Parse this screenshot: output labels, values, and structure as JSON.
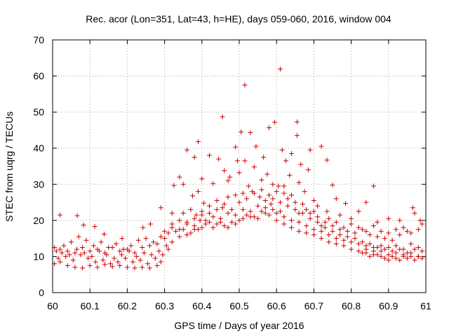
{
  "chart_data": {
    "type": "scatter",
    "title": "Rec. acor (Lon=351, Lat=43, h=HE), days 059-060, 2016, window 004",
    "xlabel": "GPS time / Days of year 2016",
    "ylabel": "STEC from uqrg / TECUs",
    "xlim": [
      60,
      61
    ],
    "ylim": [
      0,
      70
    ],
    "xticks": [
      60,
      60.1,
      60.2,
      60.3,
      60.4,
      60.5,
      60.6,
      60.7,
      60.8,
      60.9,
      61
    ],
    "xtick_labels": [
      "60",
      "60.1",
      "60.2",
      "60.3",
      "60.4",
      "60.5",
      "60.6",
      "60.7",
      "60.8",
      "60.9",
      "61"
    ],
    "yticks": [
      0,
      10,
      20,
      30,
      40,
      50,
      60,
      70
    ],
    "ytick_labels": [
      "0",
      "10",
      "20",
      "30",
      "40",
      "50",
      "60",
      "70"
    ],
    "grid": true,
    "marker": "plus",
    "color": "#cc0000",
    "points": [
      [
        60.02,
        21.5
      ],
      [
        60.066,
        21.3
      ],
      [
        60.083,
        18.7
      ],
      [
        60.113,
        18.3
      ],
      [
        60.138,
        16.2
      ],
      [
        60.186,
        15.0
      ],
      [
        60.242,
        18.0
      ],
      [
        60.262,
        19.0
      ],
      [
        60.29,
        23.5
      ],
      [
        60.32,
        22.0
      ],
      [
        60.34,
        32.0
      ],
      [
        60.36,
        39.5
      ],
      [
        60.38,
        37.5
      ],
      [
        60.39,
        41.8
      ],
      [
        60.4,
        31.5
      ],
      [
        60.42,
        38.0
      ],
      [
        60.445,
        37.0
      ],
      [
        60.455,
        48.7
      ],
      [
        60.47,
        31.0
      ],
      [
        60.49,
        40.3
      ],
      [
        60.495,
        36.5
      ],
      [
        60.505,
        44.5
      ],
      [
        60.515,
        57.5
      ],
      [
        60.515,
        36.5
      ],
      [
        60.53,
        44.3
      ],
      [
        60.545,
        40.5
      ],
      [
        60.565,
        37.5
      ],
      [
        60.58,
        45.7
      ],
      [
        60.595,
        47.2
      ],
      [
        60.61,
        61.9
      ],
      [
        60.615,
        39.5
      ],
      [
        60.625,
        36.5
      ],
      [
        60.64,
        38.5
      ],
      [
        60.655,
        47.3
      ],
      [
        60.655,
        43.5
      ],
      [
        60.665,
        35.5
      ],
      [
        60.685,
        34.0
      ],
      [
        60.69,
        39.5
      ],
      [
        60.72,
        40.5
      ],
      [
        60.735,
        36.7
      ],
      [
        60.75,
        29.8
      ],
      [
        60.76,
        26.0
      ],
      [
        60.785,
        24.7
      ],
      [
        60.84,
        25.0
      ],
      [
        60.86,
        29.5
      ],
      [
        60.9,
        20.5
      ],
      [
        60.965,
        23.5
      ],
      [
        60.99,
        19.0
      ],
      [
        60.325,
        29.7
      ],
      [
        60.35,
        30.0
      ],
      [
        60.375,
        26.8
      ],
      [
        60.39,
        28.0
      ],
      [
        60.405,
        24.8
      ],
      [
        60.43,
        30.2
      ],
      [
        60.46,
        33.8
      ],
      [
        60.475,
        32.0
      ],
      [
        60.5,
        33.2
      ],
      [
        60.525,
        29.5
      ],
      [
        60.54,
        34.8
      ],
      [
        60.56,
        31.2
      ],
      [
        60.575,
        32.8
      ],
      [
        60.59,
        30.0
      ],
      [
        60.605,
        29.5
      ],
      [
        60.62,
        27.5
      ],
      [
        60.635,
        32.5
      ],
      [
        60.66,
        30.5
      ],
      [
        60.675,
        28.0
      ],
      [
        60.7,
        25.5
      ],
      [
        60.71,
        24.0
      ],
      [
        60.735,
        22.5
      ],
      [
        60.77,
        21.5
      ],
      [
        60.8,
        20.5
      ],
      [
        60.82,
        22.5
      ],
      [
        60.87,
        19.5
      ],
      [
        60.93,
        20.0
      ],
      [
        60.35,
        22.0
      ],
      [
        60.37,
        23.0
      ],
      [
        60.385,
        21.5
      ],
      [
        60.4,
        22.5
      ],
      [
        60.42,
        24.0
      ],
      [
        60.44,
        25.5
      ],
      [
        60.455,
        23.5
      ],
      [
        60.47,
        26.5
      ],
      [
        60.49,
        27.0
      ],
      [
        60.51,
        27.5
      ],
      [
        60.535,
        28.0
      ],
      [
        60.555,
        26.5
      ],
      [
        60.57,
        25.5
      ],
      [
        60.59,
        26.0
      ],
      [
        60.61,
        25.0
      ],
      [
        60.63,
        26.0
      ],
      [
        60.65,
        25.0
      ],
      [
        60.67,
        24.5
      ],
      [
        60.69,
        22.0
      ],
      [
        60.71,
        21.0
      ],
      [
        60.73,
        19.5
      ],
      [
        60.75,
        18.5
      ],
      [
        60.77,
        17.5
      ],
      [
        60.79,
        17.0
      ],
      [
        60.81,
        16.5
      ],
      [
        60.83,
        17.5
      ],
      [
        60.85,
        16.0
      ],
      [
        60.87,
        15.5
      ],
      [
        60.89,
        15.0
      ],
      [
        60.91,
        14.5
      ],
      [
        60.93,
        16.0
      ],
      [
        60.95,
        17.0
      ],
      [
        60.97,
        22.0
      ],
      [
        60.985,
        20.0
      ],
      [
        60.3,
        17.0
      ],
      [
        60.32,
        18.0
      ],
      [
        60.34,
        17.5
      ],
      [
        60.36,
        19.0
      ],
      [
        60.38,
        18.5
      ],
      [
        60.395,
        20.0
      ],
      [
        60.41,
        19.0
      ],
      [
        60.43,
        21.0
      ],
      [
        60.45,
        20.5
      ],
      [
        60.47,
        22.0
      ],
      [
        60.49,
        21.5
      ],
      [
        60.51,
        23.0
      ],
      [
        60.53,
        22.5
      ],
      [
        60.55,
        24.0
      ],
      [
        60.57,
        23.5
      ],
      [
        60.585,
        24.5
      ],
      [
        60.6,
        22.0
      ],
      [
        60.62,
        21.0
      ],
      [
        60.64,
        20.0
      ],
      [
        60.66,
        19.5
      ],
      [
        60.68,
        18.5
      ],
      [
        60.7,
        17.5
      ],
      [
        60.72,
        17.0
      ],
      [
        60.74,
        16.0
      ],
      [
        60.76,
        15.0
      ],
      [
        60.78,
        14.5
      ],
      [
        60.8,
        14.0
      ],
      [
        60.82,
        13.5
      ],
      [
        60.84,
        13.0
      ],
      [
        60.86,
        12.5
      ],
      [
        60.88,
        13.0
      ],
      [
        60.9,
        12.5
      ],
      [
        60.92,
        13.0
      ],
      [
        60.94,
        12.0
      ],
      [
        60.96,
        13.5
      ],
      [
        60.98,
        12.5
      ],
      [
        60.005,
        12.5
      ],
      [
        60.02,
        12.0
      ],
      [
        60.04,
        11.5
      ],
      [
        60.06,
        11.0
      ],
      [
        60.08,
        12.5
      ],
      [
        60.1,
        11.5
      ],
      [
        60.12,
        12.0
      ],
      [
        60.14,
        11.0
      ],
      [
        60.16,
        12.5
      ],
      [
        60.18,
        11.5
      ],
      [
        60.2,
        12.0
      ],
      [
        60.22,
        11.0
      ],
      [
        60.24,
        12.5
      ],
      [
        60.26,
        13.0
      ],
      [
        60.28,
        13.5
      ],
      [
        60.3,
        15.0
      ],
      [
        60.32,
        14.0
      ],
      [
        60.34,
        15.5
      ],
      [
        60.36,
        16.0
      ],
      [
        60.38,
        17.5
      ],
      [
        60.4,
        18.0
      ],
      [
        60.42,
        19.5
      ],
      [
        60.44,
        19.0
      ],
      [
        60.46,
        18.5
      ],
      [
        60.48,
        19.5
      ],
      [
        60.5,
        20.0
      ],
      [
        60.52,
        21.5
      ],
      [
        60.54,
        21.0
      ],
      [
        60.56,
        22.5
      ],
      [
        60.58,
        21.5
      ],
      [
        60.6,
        20.0
      ],
      [
        60.62,
        19.0
      ],
      [
        60.64,
        18.0
      ],
      [
        60.66,
        17.0
      ],
      [
        60.68,
        16.5
      ],
      [
        60.7,
        16.0
      ],
      [
        60.72,
        15.0
      ],
      [
        60.74,
        14.0
      ],
      [
        60.76,
        13.5
      ],
      [
        60.78,
        13.0
      ],
      [
        60.8,
        12.0
      ],
      [
        60.82,
        11.5
      ],
      [
        60.84,
        11.0
      ],
      [
        60.86,
        10.5
      ],
      [
        60.88,
        11.5
      ],
      [
        60.9,
        10.5
      ],
      [
        60.92,
        11.0
      ],
      [
        60.94,
        10.0
      ],
      [
        60.96,
        11.0
      ],
      [
        60.98,
        10.0
      ],
      [
        60.01,
        11.5
      ],
      [
        60.03,
        13.0
      ],
      [
        60.05,
        14.0
      ],
      [
        60.07,
        15.5
      ],
      [
        60.09,
        14.5
      ],
      [
        60.11,
        13.0
      ],
      [
        60.13,
        14.0
      ],
      [
        60.15,
        12.5
      ],
      [
        60.17,
        13.5
      ],
      [
        60.19,
        12.0
      ],
      [
        60.21,
        13.0
      ],
      [
        60.23,
        14.5
      ],
      [
        60.25,
        15.0
      ],
      [
        60.27,
        14.0
      ],
      [
        60.29,
        15.5
      ],
      [
        60.31,
        16.5
      ],
      [
        60.33,
        17.0
      ],
      [
        60.35,
        17.5
      ],
      [
        60.37,
        16.5
      ],
      [
        60.39,
        17.5
      ],
      [
        60.41,
        20.0
      ],
      [
        60.43,
        18.0
      ],
      [
        60.45,
        19.5
      ],
      [
        60.47,
        18.0
      ],
      [
        60.49,
        19.0
      ],
      [
        60.51,
        20.5
      ],
      [
        60.53,
        21.0
      ],
      [
        60.55,
        20.5
      ],
      [
        60.57,
        22.0
      ],
      [
        60.59,
        23.0
      ],
      [
        60.61,
        22.5
      ],
      [
        60.63,
        24.0
      ],
      [
        60.65,
        23.0
      ],
      [
        60.67,
        22.0
      ],
      [
        60.69,
        20.5
      ],
      [
        60.71,
        19.5
      ],
      [
        60.73,
        18.0
      ],
      [
        60.75,
        17.0
      ],
      [
        60.77,
        16.0
      ],
      [
        60.79,
        15.5
      ],
      [
        60.81,
        15.0
      ],
      [
        60.83,
        14.0
      ],
      [
        60.85,
        13.5
      ],
      [
        60.87,
        12.5
      ],
      [
        60.89,
        12.0
      ],
      [
        60.91,
        11.5
      ],
      [
        60.93,
        12.0
      ],
      [
        60.95,
        11.0
      ],
      [
        60.97,
        12.0
      ],
      [
        60.99,
        11.5
      ],
      [
        60.005,
        8.0
      ],
      [
        60.02,
        8.5
      ],
      [
        60.04,
        7.5
      ],
      [
        60.06,
        7.0
      ],
      [
        60.08,
        6.8
      ],
      [
        60.1,
        7.5
      ],
      [
        60.12,
        7.0
      ],
      [
        60.14,
        7.8
      ],
      [
        60.16,
        7.2
      ],
      [
        60.18,
        7.5
      ],
      [
        60.2,
        7.0
      ],
      [
        60.22,
        6.8
      ],
      [
        60.24,
        7.0
      ],
      [
        60.26,
        6.8
      ],
      [
        60.28,
        7.5
      ],
      [
        60.29,
        8.5
      ],
      [
        60.015,
        9.5
      ],
      [
        60.035,
        10.0
      ],
      [
        60.055,
        9.0
      ],
      [
        60.075,
        10.5
      ],
      [
        60.095,
        9.5
      ],
      [
        60.115,
        8.5
      ],
      [
        60.135,
        9.0
      ],
      [
        60.155,
        8.0
      ],
      [
        60.175,
        8.5
      ],
      [
        60.195,
        9.5
      ],
      [
        60.215,
        8.5
      ],
      [
        60.235,
        9.0
      ],
      [
        60.255,
        8.0
      ],
      [
        60.275,
        9.5
      ],
      [
        60.295,
        10.5
      ],
      [
        60.31,
        12.0
      ],
      [
        60.025,
        11.0
      ],
      [
        60.045,
        10.5
      ],
      [
        60.065,
        12.0
      ],
      [
        60.085,
        11.0
      ],
      [
        60.105,
        10.0
      ],
      [
        60.125,
        11.5
      ],
      [
        60.145,
        10.5
      ],
      [
        60.165,
        9.5
      ],
      [
        60.185,
        10.5
      ],
      [
        60.205,
        11.5
      ],
      [
        60.225,
        10.0
      ],
      [
        60.245,
        11.0
      ],
      [
        60.265,
        10.5
      ],
      [
        60.285,
        11.5
      ],
      [
        60.305,
        13.0
      ],
      [
        60.83,
        11.0
      ],
      [
        60.85,
        10.0
      ],
      [
        60.87,
        10.5
      ],
      [
        60.89,
        9.5
      ],
      [
        60.91,
        10.0
      ],
      [
        60.93,
        9.0
      ],
      [
        60.95,
        9.5
      ],
      [
        60.97,
        9.0
      ],
      [
        60.99,
        9.5
      ],
      [
        60.84,
        12.0
      ],
      [
        60.88,
        10.0
      ],
      [
        60.92,
        9.5
      ],
      [
        60.96,
        10.0
      ],
      [
        60.86,
        11.5
      ],
      [
        60.9,
        9.0
      ],
      [
        60.94,
        10.5
      ],
      [
        60.98,
        10.0
      ],
      [
        60.8,
        19.0
      ],
      [
        60.82,
        18.0
      ],
      [
        60.84,
        17.0
      ],
      [
        60.86,
        18.5
      ],
      [
        60.88,
        17.0
      ],
      [
        60.9,
        16.5
      ],
      [
        60.92,
        17.5
      ],
      [
        60.94,
        18.0
      ],
      [
        60.96,
        16.5
      ],
      [
        60.98,
        17.5
      ],
      [
        60.78,
        18.0
      ],
      [
        60.76,
        19.5
      ],
      [
        60.74,
        20.5
      ],
      [
        60.72,
        18.5
      ],
      [
        60.7,
        22.5
      ],
      [
        60.68,
        23.0
      ],
      [
        60.66,
        22.0
      ],
      [
        60.64,
        27.0
      ],
      [
        60.62,
        29.5
      ],
      [
        60.6,
        28.0
      ],
      [
        60.58,
        27.0
      ],
      [
        60.56,
        28.5
      ],
      [
        60.54,
        27.5
      ],
      [
        60.52,
        26.0
      ],
      [
        60.5,
        25.0
      ],
      [
        60.48,
        23.0
      ],
      [
        60.46,
        24.5
      ],
      [
        60.44,
        23.0
      ],
      [
        60.42,
        22.0
      ],
      [
        60.4,
        21.5
      ],
      [
        60.38,
        20.5
      ],
      [
        60.36,
        19.5
      ],
      [
        60.34,
        20.0
      ],
      [
        60.32,
        19.0
      ]
    ]
  }
}
